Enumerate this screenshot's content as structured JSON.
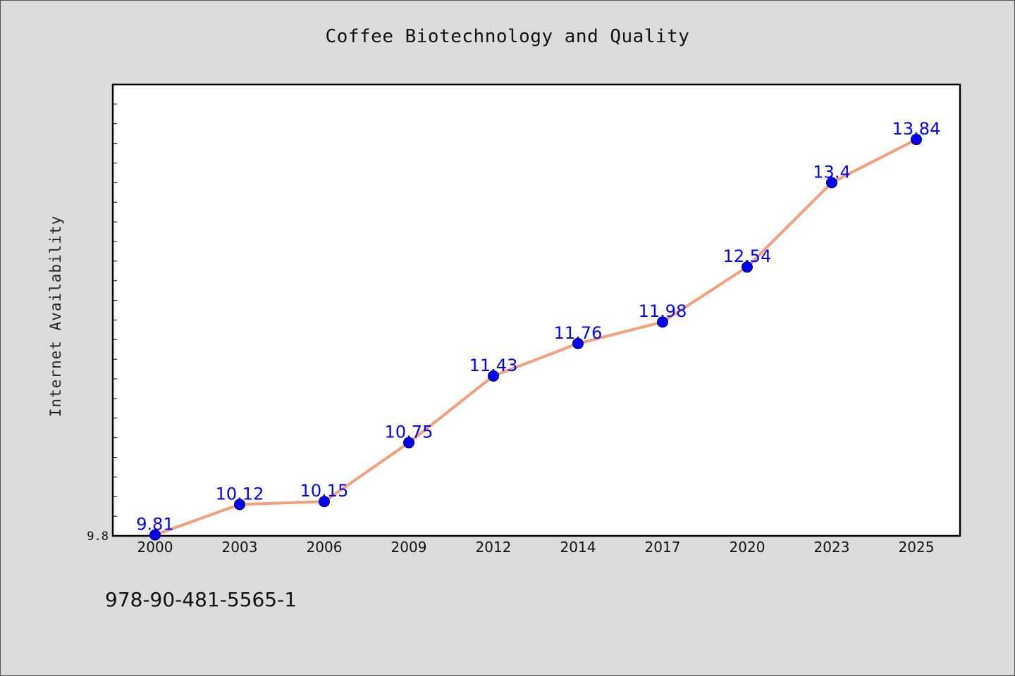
{
  "chart_data": {
    "type": "line",
    "title": "Coffee Biotechnology and Quality",
    "xlabel": "",
    "ylabel": "Internet Availability",
    "categories": [
      "2000",
      "2003",
      "2006",
      "2009",
      "2012",
      "2014",
      "2017",
      "2020",
      "2023",
      "2025"
    ],
    "series": [
      {
        "values": [
          9.81,
          10.12,
          10.15,
          10.75,
          11.43,
          11.76,
          11.98,
          12.54,
          13.4,
          13.84
        ]
      }
    ],
    "data_labels": [
      "9.81",
      "10.12",
      "10.15",
      "10.75",
      "11.43",
      "11.76",
      "11.98",
      "12.54",
      "13.4",
      "13.84"
    ],
    "y_tick_labels": [
      "9.8"
    ],
    "ylim": [
      9.8,
      14.4
    ],
    "grid": false,
    "line_color": "#f4a07a",
    "marker_color": "#0000ff",
    "label_color": "#0000ff"
  },
  "footer": {
    "isbn": "978-90-481-5565-1"
  }
}
